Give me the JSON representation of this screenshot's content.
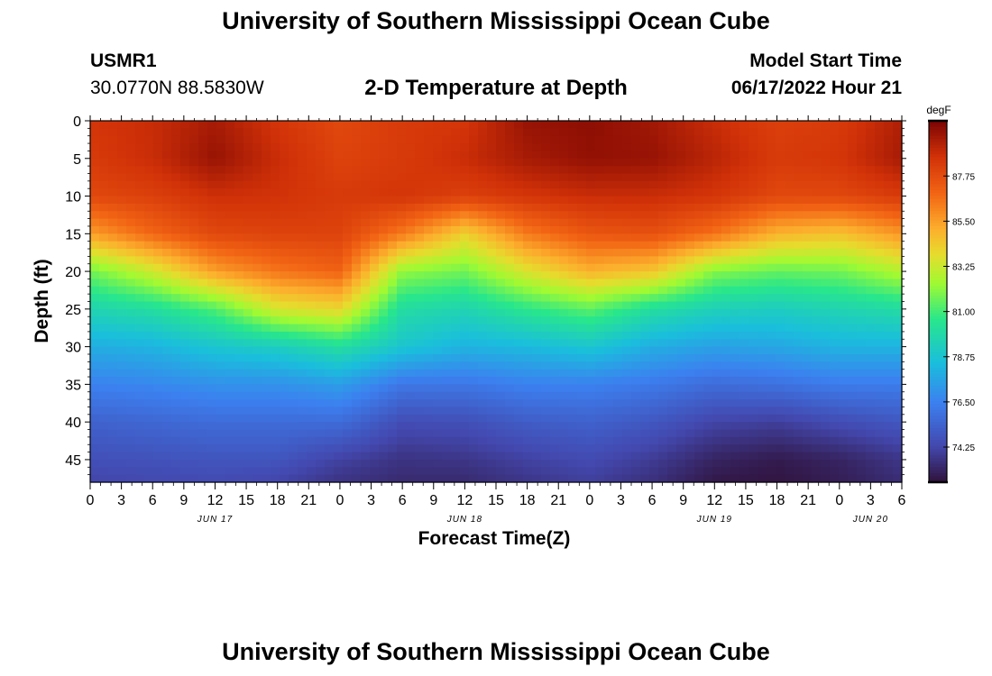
{
  "header": {
    "title": "University of Southern Mississippi Ocean Cube",
    "station_id": "USMR1",
    "coordinates": "30.0770N  88.5830W",
    "plot_title": "2-D Temperature at Depth",
    "model_start_label": "Model Start Time",
    "model_start_value": "06/17/2022 Hour 21"
  },
  "footer": {
    "title": "University of Southern Mississippi Ocean Cube"
  },
  "chart_data": {
    "type": "heatmap",
    "title": "2-D Temperature at Depth",
    "xlabel": "Forecast Time(Z)",
    "ylabel": "Depth (ft)",
    "x_unit": "hours from Jun 17 00Z",
    "xlim": [
      0,
      78
    ],
    "ylim": [
      0,
      48
    ],
    "x_ticks": [
      {
        "pos": 0,
        "label": "0"
      },
      {
        "pos": 3,
        "label": "3"
      },
      {
        "pos": 6,
        "label": "6"
      },
      {
        "pos": 9,
        "label": "9"
      },
      {
        "pos": 12,
        "label": "12"
      },
      {
        "pos": 15,
        "label": "15"
      },
      {
        "pos": 18,
        "label": "18"
      },
      {
        "pos": 21,
        "label": "21"
      },
      {
        "pos": 24,
        "label": "0"
      },
      {
        "pos": 27,
        "label": "3"
      },
      {
        "pos": 30,
        "label": "6"
      },
      {
        "pos": 33,
        "label": "9"
      },
      {
        "pos": 36,
        "label": "12"
      },
      {
        "pos": 39,
        "label": "15"
      },
      {
        "pos": 42,
        "label": "18"
      },
      {
        "pos": 45,
        "label": "21"
      },
      {
        "pos": 48,
        "label": "0"
      },
      {
        "pos": 51,
        "label": "3"
      },
      {
        "pos": 54,
        "label": "6"
      },
      {
        "pos": 57,
        "label": "9"
      },
      {
        "pos": 60,
        "label": "12"
      },
      {
        "pos": 63,
        "label": "15"
      },
      {
        "pos": 66,
        "label": "18"
      },
      {
        "pos": 69,
        "label": "21"
      },
      {
        "pos": 72,
        "label": "0"
      },
      {
        "pos": 75,
        "label": "3"
      },
      {
        "pos": 78,
        "label": "6"
      }
    ],
    "date_labels": [
      {
        "pos": 12,
        "label": "JUN 17"
      },
      {
        "pos": 36,
        "label": "JUN 18"
      },
      {
        "pos": 60,
        "label": "JUN 19"
      },
      {
        "pos": 75,
        "label": "JUN 20"
      }
    ],
    "y_ticks": [
      0,
      5,
      10,
      15,
      20,
      25,
      30,
      35,
      40,
      45
    ],
    "colorbar": {
      "unit": "degF",
      "range": [
        72.5,
        90.5
      ],
      "ticks": [
        74.25,
        76.5,
        78.75,
        81.0,
        83.25,
        85.5,
        87.75
      ],
      "tick_labels": [
        "74.25",
        "76.50",
        "78.75",
        "81.00",
        "83.25",
        "85.50",
        "87.75"
      ]
    },
    "times": [
      0,
      6,
      12,
      18,
      24,
      30,
      36,
      42,
      48,
      54,
      60,
      66,
      72,
      78
    ],
    "depths": [
      0,
      5,
      10,
      15,
      20,
      25,
      30,
      35,
      40,
      45,
      48
    ],
    "temperature_degF": [
      [
        88.6,
        88.9,
        89.6,
        88.6,
        87.9,
        88.4,
        88.6,
        89.9,
        90.1,
        89.7,
        88.9,
        88.2,
        88.4,
        89.4
      ],
      [
        88.4,
        88.9,
        89.9,
        88.9,
        88.1,
        88.4,
        88.9,
        89.6,
        90.0,
        89.9,
        89.2,
        88.4,
        88.6,
        89.6
      ],
      [
        87.9,
        88.2,
        88.8,
        88.7,
        88.4,
        88.6,
        88.2,
        88.6,
        88.9,
        88.9,
        88.6,
        87.9,
        87.9,
        88.4
      ],
      [
        85.5,
        86.9,
        87.9,
        88.1,
        88.1,
        86.4,
        84.2,
        86.4,
        87.4,
        87.6,
        86.6,
        85.0,
        84.6,
        85.7
      ],
      [
        81.7,
        83.3,
        85.5,
        86.5,
        87.0,
        82.2,
        81.7,
        83.6,
        85.0,
        84.5,
        82.0,
        81.5,
        81.7,
        82.8
      ],
      [
        79.6,
        80.1,
        81.2,
        83.5,
        84.0,
        80.0,
        79.6,
        80.6,
        81.4,
        80.1,
        79.4,
        79.2,
        79.6,
        80.0
      ],
      [
        77.9,
        78.1,
        78.8,
        79.2,
        80.1,
        78.8,
        78.1,
        78.3,
        78.8,
        77.9,
        77.5,
        77.7,
        78.1,
        78.1
      ],
      [
        76.5,
        76.7,
        77.0,
        77.0,
        77.4,
        76.1,
        76.1,
        76.5,
        76.5,
        76.2,
        75.7,
        75.9,
        76.3,
        76.3
      ],
      [
        75.3,
        75.5,
        75.7,
        75.7,
        75.7,
        74.5,
        74.6,
        75.1,
        75.3,
        74.9,
        74.2,
        74.0,
        74.5,
        74.9
      ],
      [
        74.6,
        74.7,
        74.8,
        74.8,
        74.1,
        73.6,
        73.7,
        74.1,
        74.4,
        73.9,
        73.1,
        72.8,
        73.1,
        73.7
      ],
      [
        74.2,
        74.3,
        74.4,
        74.2,
        73.6,
        73.3,
        73.3,
        73.7,
        74.0,
        73.5,
        72.7,
        72.6,
        72.9,
        73.4
      ]
    ]
  }
}
